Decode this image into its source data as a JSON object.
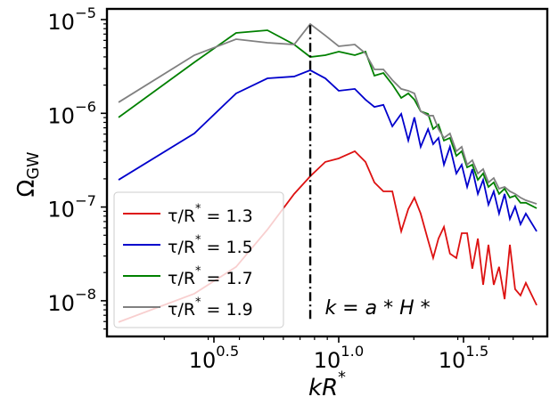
{
  "chart_data": {
    "type": "line",
    "xlabel": "kR^{*}",
    "ylabel": "Ω_{GW}",
    "log_x": true,
    "log_y": true,
    "xlim": [
      1.179,
      68.5
    ],
    "ylim": [
      4.16e-09,
      1.3e-05
    ],
    "xticks": [
      {
        "value": 3.1623,
        "label": "10^{0.5}"
      },
      {
        "value": 10,
        "label": "10^{1.0}"
      },
      {
        "value": 31.623,
        "label": "10^{1.5}"
      }
    ],
    "yticks": [
      {
        "value": 1e-08,
        "label": "10^{−8}"
      },
      {
        "value": 1e-07,
        "label": "10^{−7}"
      },
      {
        "value": 1e-06,
        "label": "10^{−6}"
      },
      {
        "value": 1e-05,
        "label": "10^{−5}"
      }
    ],
    "legend": "lower left",
    "x": [
      1.312,
      2.64,
      3.88,
      5.18,
      6.63,
      7.69,
      8.84,
      10.0,
      11.6,
      12.8,
      13.9,
      15.1,
      16.4,
      17.8,
      19.0,
      20.1,
      21.3,
      22.8,
      23.9,
      25.1,
      26.4,
      27.9,
      29.6,
      31.1,
      32.7,
      34.3,
      36.1,
      37.9,
      39.8,
      41.8,
      43.9,
      46.2,
      48.5,
      50.9,
      53.5,
      56.2,
      62.1
    ],
    "series": [
      {
        "name": "τ/R^{*} = 1.3",
        "color": "#dd1111",
        "values": [
          5.92e-09,
          1.19e-08,
          2.3e-08,
          5.74e-08,
          1.38e-07,
          2.13e-07,
          3.03e-07,
          3.3e-07,
          3.94e-07,
          3.03e-07,
          1.83e-07,
          1.47e-07,
          1.47e-07,
          5.5e-08,
          9.51e-08,
          1.26e-07,
          8.51e-08,
          4.43e-08,
          2.86e-08,
          4.61e-08,
          6.14e-08,
          3.18e-08,
          2.86e-08,
          5.26e-08,
          5.26e-08,
          2.2e-08,
          4.61e-08,
          1.48e-08,
          3.96e-08,
          1.48e-08,
          2.3e-08,
          1.04e-08,
          3.96e-08,
          1.33e-08,
          1.14e-08,
          1.55e-08,
          8.96e-09
        ]
      },
      {
        "name": "τ/R^{*} = 1.5",
        "color": "#0000cc",
        "values": [
          1.95e-07,
          6.1e-07,
          1.63e-06,
          2.36e-06,
          2.47e-06,
          2.88e-06,
          2.36e-06,
          1.74e-06,
          1.82e-06,
          1.4e-06,
          1.17e-06,
          1.23e-06,
          7.26e-07,
          9.86e-07,
          5.12e-07,
          9.04e-07,
          4.39e-07,
          6.79e-07,
          4.69e-07,
          5.46e-07,
          2.83e-07,
          4.39e-07,
          2.28e-07,
          2.83e-07,
          1.64e-07,
          2.54e-07,
          1.38e-07,
          1.95e-07,
          1.06e-07,
          1.47e-07,
          8.51e-08,
          1.38e-07,
          7.46e-08,
          1.01e-07,
          6.55e-08,
          8.51e-08,
          5.5e-08
        ]
      },
      {
        "name": "τ/R^{*} = 1.7",
        "color": "#008000",
        "values": [
          9.04e-07,
          3.5e-06,
          7.21e-06,
          7.69e-06,
          5.42e-06,
          3.99e-06,
          4.17e-06,
          4.55e-06,
          4.17e-06,
          4.55e-06,
          2.52e-06,
          2.69e-06,
          2.03e-06,
          1.46e-06,
          1.63e-06,
          1.4e-06,
          1.05e-06,
          9.86e-07,
          6.79e-07,
          7.59e-07,
          5.12e-07,
          5.46e-07,
          3.52e-07,
          3.94e-07,
          2.65e-07,
          2.83e-07,
          1.95e-07,
          2.28e-07,
          1.64e-07,
          1.83e-07,
          1.38e-07,
          1.57e-07,
          1.26e-07,
          1.32e-07,
          1.11e-07,
          1.11e-07,
          9.7e-08
        ]
      },
      {
        "name": "τ/R^{*} = 1.9",
        "color": "#808080",
        "values": [
          1.31e-06,
          4.17e-06,
          6.18e-06,
          5.66e-06,
          5.42e-06,
          8.97e-06,
          6.75e-06,
          5.19e-06,
          5.42e-06,
          4.36e-06,
          2.94e-06,
          2.94e-06,
          2.26e-06,
          1.82e-06,
          1.74e-06,
          1.63e-06,
          1.05e-06,
          9.44e-07,
          9.44e-07,
          6.79e-07,
          5.46e-07,
          6.1e-07,
          3.94e-07,
          4.39e-07,
          2.83e-07,
          3.16e-07,
          2.28e-07,
          2.54e-07,
          1.83e-07,
          2.04e-07,
          1.57e-07,
          1.64e-07,
          1.47e-07,
          1.38e-07,
          1.26e-07,
          1.18e-07,
          1.08e-07
        ]
      }
    ],
    "vline": {
      "x": 7.69,
      "y": [
        6.4e-09,
        9e-06
      ],
      "color": "#000000"
    },
    "annotation": {
      "text": "k = a * H *",
      "x": 8.8,
      "y": 8.2e-09
    }
  }
}
